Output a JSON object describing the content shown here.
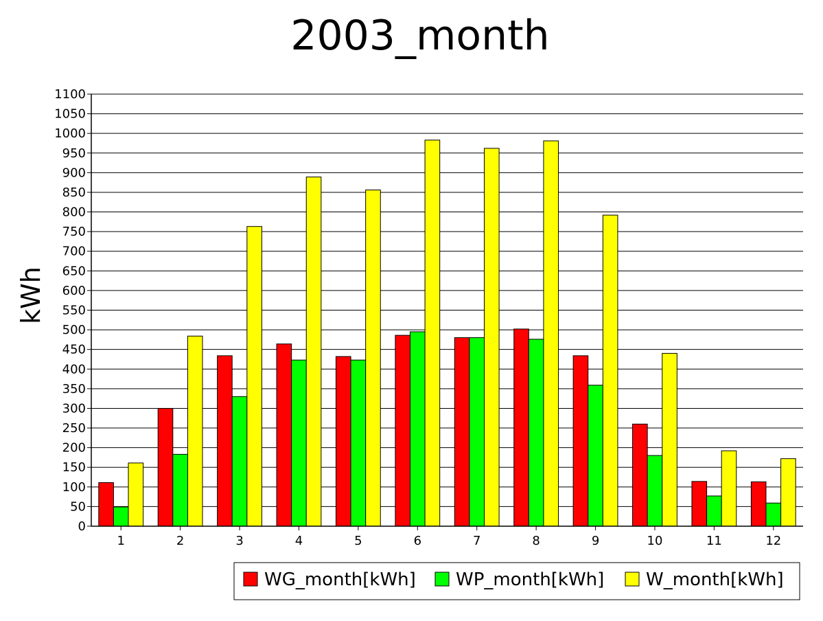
{
  "chart_data": {
    "type": "bar",
    "title": "2003_month",
    "xlabel": "",
    "ylabel": "kWh",
    "categories": [
      "1",
      "2",
      "3",
      "4",
      "5",
      "6",
      "7",
      "8",
      "9",
      "10",
      "11",
      "12"
    ],
    "ylim": [
      0,
      1100
    ],
    "ytick_step": 50,
    "grid": true,
    "legend_position": "bottom-right",
    "series": [
      {
        "name": "WG_month[kWh]",
        "color": "#ff0000",
        "values": [
          111,
          300,
          434,
          464,
          432,
          486,
          480,
          502,
          434,
          260,
          114,
          113
        ]
      },
      {
        "name": "WP_month[kWh]",
        "color": "#00ff00",
        "values": [
          49,
          183,
          330,
          423,
          423,
          495,
          480,
          476,
          359,
          180,
          77,
          59
        ]
      },
      {
        "name": "W_month[kWh]",
        "color": "#ffff00",
        "values": [
          161,
          484,
          763,
          889,
          856,
          983,
          962,
          981,
          792,
          440,
          192,
          172
        ]
      }
    ]
  }
}
